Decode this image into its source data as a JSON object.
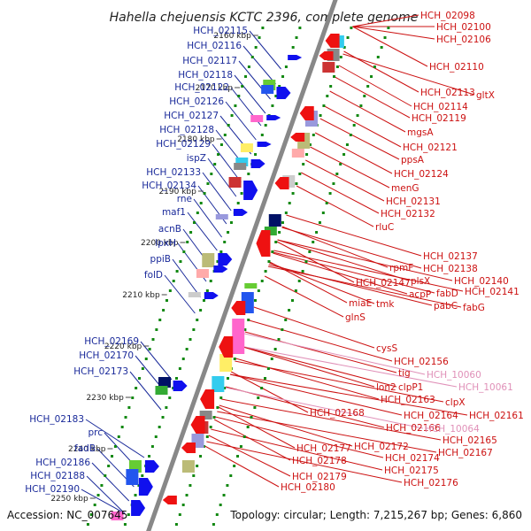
{
  "title": "Hahella chejuensis KCTC 2396, complete genome",
  "footer": {
    "accession": "Accession: NC_007645",
    "topology": "Topology: circular; Length: 7,215,267 bp; Genes: 6,860"
  },
  "colors": {
    "backbone": "#888888",
    "left_label": "#1a2a9a",
    "right_label": "#cc1111",
    "pseudo_label": "#e090b8",
    "forward_arrow": "#1010ee",
    "reverse_arrow": "#ee1111",
    "dots": "#118811"
  },
  "ticks": [
    "2160 kbp",
    "2170 kbp",
    "2180 kbp",
    "2190 kbp",
    "2200 kbp",
    "2210 kbp",
    "2220 kbp",
    "2230 kbp",
    "2240 kbp",
    "2250 kbp"
  ],
  "left_genes": [
    "HCH_02115",
    "HCH_02116",
    "HCH_02117",
    "HCH_02118",
    "HCH_02122",
    "HCH_02126",
    "HCH_02127",
    "HCH_02128",
    "HCH_02129",
    "ispZ",
    "HCH_02133",
    "HCH_02134",
    "rne",
    "maf1",
    "acnB",
    "lpxH",
    "ppiB",
    "folD",
    "HCH_02169",
    "HCH_02170",
    "HCH_02173",
    "HCH_02183",
    "prc",
    "fadB",
    "HCH_02186",
    "HCH_02188",
    "HCH_02190"
  ],
  "right_genes": [
    "HCH_02098",
    "HCH_02100",
    "HCH_02106",
    "HCH_02110",
    "HCH_02113",
    "gltX",
    "HCH_02114",
    "HCH_02119",
    "mgsA",
    "HCH_02121",
    "ppsA",
    "HCH_02124",
    "menG",
    "HCH_02131",
    "HCH_02132",
    "rluC",
    "HCH_02137",
    "rpmF",
    "HCH_02138",
    "plsX",
    "HCH_02140",
    "HCH_02147",
    "acpP",
    "fabD",
    "HCH_02141",
    "pabC",
    "fabG",
    "miaE",
    "tmk",
    "glnS",
    "cysS",
    "HCH_02156",
    "tig",
    "HCH_10060",
    "clpP1",
    "HCH_10061",
    "lon2",
    "clpX",
    "HCH_02163",
    "HCH_02161",
    "HCH_02168",
    "HCH_02164",
    "HCH_02166",
    "HCH_10064",
    "HCH_02165",
    "HCH_02172",
    "HCH_02177",
    "HCH_02167",
    "HCH_02174",
    "HCH_02178",
    "HCH_02175",
    "HCH_02179",
    "HCH_02176",
    "HCH_02180"
  ]
}
